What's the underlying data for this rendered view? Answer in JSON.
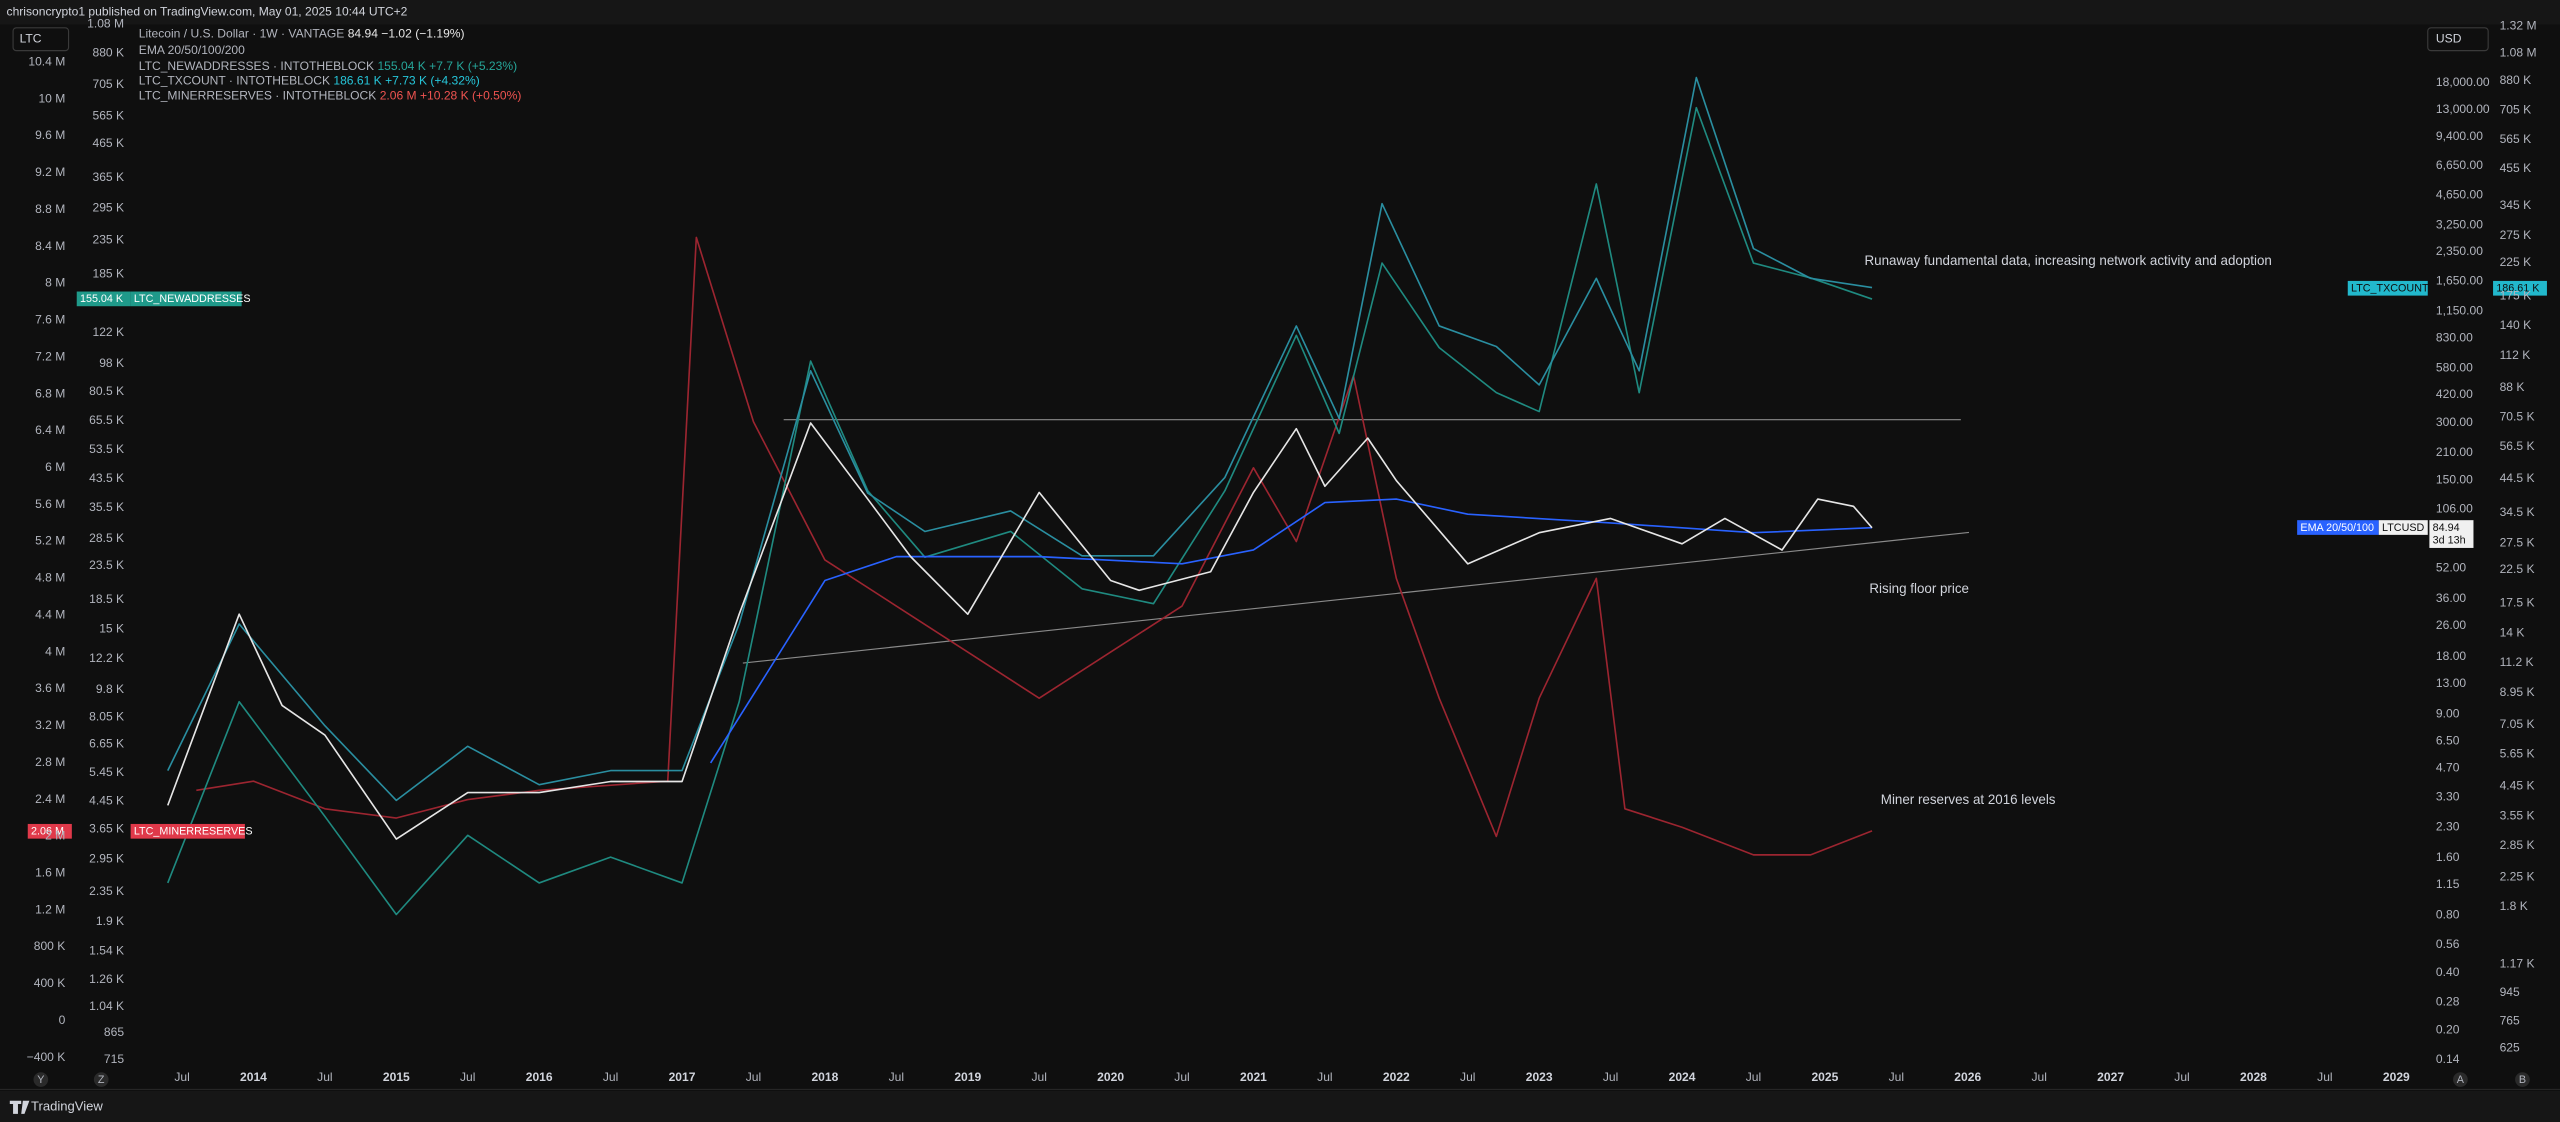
{
  "header": {
    "title": "chrisoncrypto1 published on TradingView.com, May 01, 2025 10:44 UTC+2"
  },
  "symbol_box": "LTC",
  "currency_box": "USD",
  "legend": {
    "price": {
      "name": "Litecoin / U.S. Dollar · 1W · VANTAGE",
      "last": "84.94",
      "change": "−1.02 (−1.19%)"
    },
    "ema": {
      "name": "EMA 20/50/100/200"
    },
    "newaddresses": {
      "name": "LTC_NEWADDRESSES · INTOTHEBLOCK",
      "last": "155.04 K",
      "change": "+7.7 K (+5.23%)"
    },
    "txcount": {
      "name": "LTC_TXCOUNT · INTOTHEBLOCK",
      "last": "186.61 K",
      "change": "+7.73 K (+4.32%)"
    },
    "minerreserves": {
      "name": "LTC_MINERRESERVES · INTOTHEBLOCK",
      "last": "2.06 M",
      "change": "+10.28 K (+0.50%)"
    }
  },
  "badges": {
    "newaddresses_value": "155.04 K",
    "minerreserves_value": "2.06 M",
    "txcount_value": "186.61 K",
    "ema_label": "EMA 20/50/100",
    "price_value": "84.94",
    "countdown": "3d 13h"
  },
  "scale_buttons": [
    "Y",
    "Z",
    "A",
    "B"
  ],
  "footer": {
    "brand": "TradingView"
  },
  "chart_data": {
    "type": "line",
    "annotations": [
      "Runaway fundamental data, increasing network activity and adoption",
      "Rising floor price",
      "Miner reserves at 2016 levels"
    ],
    "xlim": [
      2013.14,
      2029.22
    ],
    "xticks": [
      {
        "value": 2013.5,
        "label": "Jul"
      },
      2014,
      {
        "value": 2014.5,
        "label": "Jul"
      },
      2015,
      {
        "value": 2015.5,
        "label": "Jul"
      },
      2016,
      {
        "value": 2016.5,
        "label": "Jul"
      },
      2017,
      {
        "value": 2017.5,
        "label": "Jul"
      },
      2018,
      {
        "value": 2018.5,
        "label": "Jul"
      },
      2019,
      {
        "value": 2019.5,
        "label": "Jul"
      },
      2020,
      {
        "value": 2020.5,
        "label": "Jul"
      },
      2021,
      {
        "value": 2021.5,
        "label": "Jul"
      },
      2022,
      {
        "value": 2022.5,
        "label": "Jul"
      },
      2023,
      {
        "value": 2023.5,
        "label": "Jul"
      },
      2024,
      {
        "value": 2024.5,
        "label": "Jul"
      },
      2025,
      {
        "value": 2025.5,
        "label": "Jul"
      },
      2026,
      {
        "value": 2026.5,
        "label": "Jul"
      },
      2027,
      {
        "value": 2027.5,
        "label": "Jul"
      },
      2028,
      {
        "value": 2028.5,
        "label": "Jul"
      },
      2029
    ],
    "ylog": true,
    "ylim": [
      0.1127,
      36400
    ],
    "yticks": [
      {
        "value": 18000,
        "label": "18,000.00"
      },
      {
        "value": 13000,
        "label": "13,000.00"
      },
      {
        "value": 9400,
        "label": "9,400.00"
      },
      {
        "value": 6650,
        "label": "6,650.00"
      },
      {
        "value": 4650,
        "label": "4,650.00"
      },
      {
        "value": 3250,
        "label": "3,250.00"
      },
      {
        "value": 2350,
        "label": "2,350.00"
      },
      {
        "value": 1650,
        "label": "1,650.00"
      },
      {
        "value": 1150,
        "label": "1,150.00"
      },
      {
        "value": 830,
        "label": "830.00"
      },
      {
        "value": 580,
        "label": "580.00"
      },
      {
        "value": 420,
        "label": "420.00"
      },
      {
        "value": 300,
        "label": "300.00"
      },
      {
        "value": 210,
        "label": "210.00"
      },
      {
        "value": 150,
        "label": "150.00"
      },
      {
        "value": 106,
        "label": "106.00"
      },
      {
        "value": 52,
        "label": "52.00"
      },
      {
        "value": 36,
        "label": "36.00"
      },
      {
        "value": 26,
        "label": "26.00"
      },
      {
        "value": 18,
        "label": "18.00"
      },
      {
        "value": 13,
        "label": "13.00"
      },
      {
        "value": 9,
        "label": "9.00"
      },
      {
        "value": 6.5,
        "label": "6.50"
      },
      {
        "value": 4.7,
        "label": "4.70"
      },
      {
        "value": 3.3,
        "label": "3.30"
      },
      {
        "value": 2.3,
        "label": "2.30"
      },
      {
        "value": 1.6,
        "label": "1.60"
      },
      {
        "value": 1.15,
        "label": "1.15"
      },
      {
        "value": 0.8,
        "label": "0.80"
      },
      {
        "value": 0.56,
        "label": "0.56"
      },
      {
        "value": 0.4,
        "label": "0.40"
      },
      {
        "value": 0.28,
        "label": "0.28"
      },
      {
        "value": 0.2,
        "label": "0.20"
      },
      {
        "value": 0.14,
        "label": "0.14"
      }
    ],
    "y2log": true,
    "y2lim": [
      500,
      1340000
    ],
    "y2ticks": [
      {
        "value": 1320000,
        "label": "1.32 M"
      },
      {
        "value": 1080000,
        "label": "1.08 M"
      },
      {
        "value": 880000,
        "label": "880 K"
      },
      {
        "value": 705000,
        "label": "705 K"
      },
      {
        "value": 565000,
        "label": "565 K"
      },
      {
        "value": 455000,
        "label": "455 K"
      },
      {
        "value": 345000,
        "label": "345 K"
      },
      {
        "value": 275000,
        "label": "275 K"
      },
      {
        "value": 225000,
        "label": "225 K"
      },
      {
        "value": 175000,
        "label": "175 K"
      },
      {
        "value": 140000,
        "label": "140 K"
      },
      {
        "value": 112000,
        "label": "112 K"
      },
      {
        "value": 88000,
        "label": "88 K"
      },
      {
        "value": 70500,
        "label": "70.5 K"
      },
      {
        "value": 56500,
        "label": "56.5 K"
      },
      {
        "value": 44500,
        "label": "44.5 K"
      },
      {
        "value": 34500,
        "label": "34.5 K"
      },
      {
        "value": 27500,
        "label": "27.5 K"
      },
      {
        "value": 22500,
        "label": "22.5 K"
      },
      {
        "value": 17500,
        "label": "17.5 K"
      },
      {
        "value": 14000,
        "label": "14 K"
      },
      {
        "value": 11200,
        "label": "11.2 K"
      },
      {
        "value": 8950,
        "label": "8.95 K"
      },
      {
        "value": 7050,
        "label": "7.05 K"
      },
      {
        "value": 5650,
        "label": "5.65 K"
      },
      {
        "value": 4450,
        "label": "4.45 K"
      },
      {
        "value": 3550,
        "label": "3.55 K"
      },
      {
        "value": 2850,
        "label": "2.85 K"
      },
      {
        "value": 2250,
        "label": "2.25 K"
      },
      {
        "value": 1800,
        "label": "1.8 K"
      },
      {
        "value": 1170,
        "label": "1.17 K"
      },
      945,
      765,
      625
    ],
    "y3log": true,
    "y3lim": [
      630,
      1080000
    ],
    "y3ticks": [
      {
        "value": 1080000,
        "label": "1.08 M"
      },
      {
        "value": 880000,
        "label": "880 K"
      },
      {
        "value": 705000,
        "label": "705 K"
      },
      {
        "value": 565000,
        "label": "565 K"
      },
      {
        "value": 465000,
        "label": "465 K"
      },
      {
        "value": 365000,
        "label": "365 K"
      },
      {
        "value": 295000,
        "label": "295 K"
      },
      {
        "value": 235000,
        "label": "235 K"
      },
      {
        "value": 185000,
        "label": "185 K"
      },
      {
        "value": 122000,
        "label": "122 K"
      },
      {
        "value": 98000,
        "label": "98 K"
      },
      {
        "value": 80500,
        "label": "80.5 K"
      },
      {
        "value": 65500,
        "label": "65.5 K"
      },
      {
        "value": 53500,
        "label": "53.5 K"
      },
      {
        "value": 43500,
        "label": "43.5 K"
      },
      {
        "value": 35500,
        "label": "35.5 K"
      },
      {
        "value": 28500,
        "label": "28.5 K"
      },
      {
        "value": 23500,
        "label": "23.5 K"
      },
      {
        "value": 18500,
        "label": "18.5 K"
      },
      {
        "value": 15000,
        "label": "15 K"
      },
      {
        "value": 12200,
        "label": "12.2 K"
      },
      {
        "value": 9800,
        "label": "9.8 K"
      },
      {
        "value": 8050,
        "label": "8.05 K"
      },
      {
        "value": 6650,
        "label": "6.65 K"
      },
      {
        "value": 5450,
        "label": "5.45 K"
      },
      {
        "value": 4450,
        "label": "4.45 K"
      },
      {
        "value": 3650,
        "label": "3.65 K"
      },
      {
        "value": 2950,
        "label": "2.95 K"
      },
      {
        "value": 2350,
        "label": "2.35 K"
      },
      {
        "value": 1900,
        "label": "1.9 K"
      },
      {
        "value": 1540,
        "label": "1.54 K"
      },
      {
        "value": 1260,
        "label": "1.26 K"
      },
      {
        "value": 1040,
        "label": "1.04 K"
      },
      865,
      715
    ],
    "y4log": false,
    "y4lim": [
      -620000,
      10810000
    ],
    "y4ticks": [
      {
        "value": 10400000,
        "label": "10.4 M"
      },
      {
        "value": 10000000,
        "label": "10 M"
      },
      {
        "value": 9600000,
        "label": "9.6 M"
      },
      {
        "value": 9200000,
        "label": "9.2 M"
      },
      {
        "value": 8800000,
        "label": "8.8 M"
      },
      {
        "value": 8400000,
        "label": "8.4 M"
      },
      {
        "value": 8000000,
        "label": "8 M"
      },
      {
        "value": 7600000,
        "label": "7.6 M"
      },
      {
        "value": 7200000,
        "label": "7.2 M"
      },
      {
        "value": 6800000,
        "label": "6.8 M"
      },
      {
        "value": 6400000,
        "label": "6.4 M"
      },
      {
        "value": 6000000,
        "label": "6 M"
      },
      {
        "value": 5600000,
        "label": "5.6 M"
      },
      {
        "value": 5200000,
        "label": "5.2 M"
      },
      {
        "value": 4800000,
        "label": "4.8 M"
      },
      {
        "value": 4400000,
        "label": "4.4 M"
      },
      {
        "value": 4000000,
        "label": "4 M"
      },
      {
        "value": 3600000,
        "label": "3.6 M"
      },
      {
        "value": 3200000,
        "label": "3.2 M"
      },
      {
        "value": 2800000,
        "label": "2.8 M"
      },
      {
        "value": 2400000,
        "label": "2.4 M"
      },
      {
        "value": 2000000,
        "label": "2 M"
      },
      {
        "value": 1600000,
        "label": "1.6 M"
      },
      {
        "value": 1200000,
        "label": "1.2 M"
      },
      {
        "value": 800000,
        "label": "800 K"
      },
      {
        "value": 400000,
        "label": "400 K"
      },
      0,
      {
        "value": -400000,
        "label": "−400 K"
      }
    ],
    "series": [
      {
        "name": "LTC_MINERRESERVES",
        "color": "#9c2530",
        "axis": "y4",
        "x": [
          2013.6,
          2014.0,
          2014.5,
          2015.0,
          2015.5,
          2016.0,
          2016.9,
          2017.1,
          2017.5,
          2018.0,
          2018.5,
          2019.0,
          2019.5,
          2020.0,
          2020.5,
          2021.0,
          2021.3,
          2021.7,
          2022.0,
          2022.3,
          2022.7,
          2023.0,
          2023.4,
          2023.6,
          2024.0,
          2024.5,
          2024.9,
          2025.33
        ],
        "values": [
          2500000,
          2600000,
          2300000,
          2200000,
          2400000,
          2500000,
          2600000,
          8500000,
          6500000,
          5000000,
          4500000,
          4000000,
          3500000,
          4000000,
          4500000,
          6000000,
          5200000,
          7000000,
          4800000,
          3500000,
          2000000,
          3500000,
          4800000,
          2300000,
          2100000,
          1800000,
          1800000,
          2060000
        ]
      },
      {
        "name": "LTC_NEWADDRESSES",
        "color": "#1f8a80",
        "axis": "y3",
        "x": [
          2013.4,
          2013.9,
          2014.5,
          2015.0,
          2015.5,
          2016.0,
          2016.5,
          2017.0,
          2017.4,
          2017.9,
          2018.3,
          2018.7,
          2019.3,
          2019.8,
          2020.3,
          2020.8,
          2021.3,
          2021.6,
          2021.9,
          2022.3,
          2022.7,
          2023.0,
          2023.4,
          2023.7,
          2024.1,
          2024.5,
          2024.9,
          2025.33
        ],
        "values": [
          2500,
          9000,
          4000,
          2000,
          3500,
          2500,
          3000,
          2500,
          9000,
          100000,
          40000,
          25000,
          30000,
          20000,
          18000,
          40000,
          120000,
          60000,
          200000,
          110000,
          80000,
          70000,
          350000,
          80000,
          600000,
          200000,
          180000,
          155040
        ]
      },
      {
        "name": "LTC_TXCOUNT",
        "color": "#2a8ea0",
        "axis": "y2",
        "x": [
          2013.4,
          2013.9,
          2014.5,
          2015.0,
          2015.5,
          2016.0,
          2016.5,
          2017.0,
          2017.4,
          2017.9,
          2018.3,
          2018.7,
          2019.3,
          2019.8,
          2020.3,
          2020.8,
          2021.3,
          2021.6,
          2021.9,
          2022.3,
          2022.7,
          2023.0,
          2023.4,
          2023.7,
          2024.1,
          2024.5,
          2024.9,
          2025.33
        ],
        "values": [
          5000,
          15000,
          7000,
          4000,
          6000,
          4500,
          5000,
          5000,
          15000,
          100000,
          40000,
          30000,
          35000,
          25000,
          25000,
          45000,
          140000,
          70000,
          350000,
          140000,
          120000,
          90000,
          200000,
          100000,
          900000,
          250000,
          200000,
          186610
        ]
      },
      {
        "name": "EMA 20/50/100/200",
        "color": "#2962ff",
        "axis": "y",
        "x": [
          2017.2,
          2017.6,
          2018.0,
          2018.5,
          2019.5,
          2020.5,
          2021.0,
          2021.5,
          2022.0,
          2022.5,
          2023.5,
          2024.5,
          2025.33
        ],
        "values": [
          5,
          15,
          45,
          60,
          60,
          55,
          65,
          115,
          120,
          100,
          90,
          80,
          85
        ]
      },
      {
        "name": "LTCUSD",
        "color": "#e6e6e6",
        "axis": "y",
        "x": [
          2013.4,
          2013.9,
          2014.2,
          2014.5,
          2015.0,
          2015.5,
          2016.0,
          2016.5,
          2017.0,
          2017.4,
          2017.9,
          2018.3,
          2018.6,
          2019.0,
          2019.5,
          2020.0,
          2020.2,
          2020.7,
          2021.0,
          2021.3,
          2021.5,
          2021.8,
          2022.0,
          2022.5,
          2023.0,
          2023.5,
          2024.0,
          2024.3,
          2024.7,
          2024.95,
          2025.2,
          2025.33
        ],
        "values": [
          3,
          30,
          10,
          7,
          2,
          3.5,
          3.5,
          4,
          4,
          30,
          300,
          120,
          60,
          30,
          130,
          45,
          40,
          50,
          130,
          280,
          140,
          250,
          150,
          55,
          80,
          95,
          70,
          95,
          65,
          120,
          110,
          84.94
        ]
      }
    ]
  }
}
